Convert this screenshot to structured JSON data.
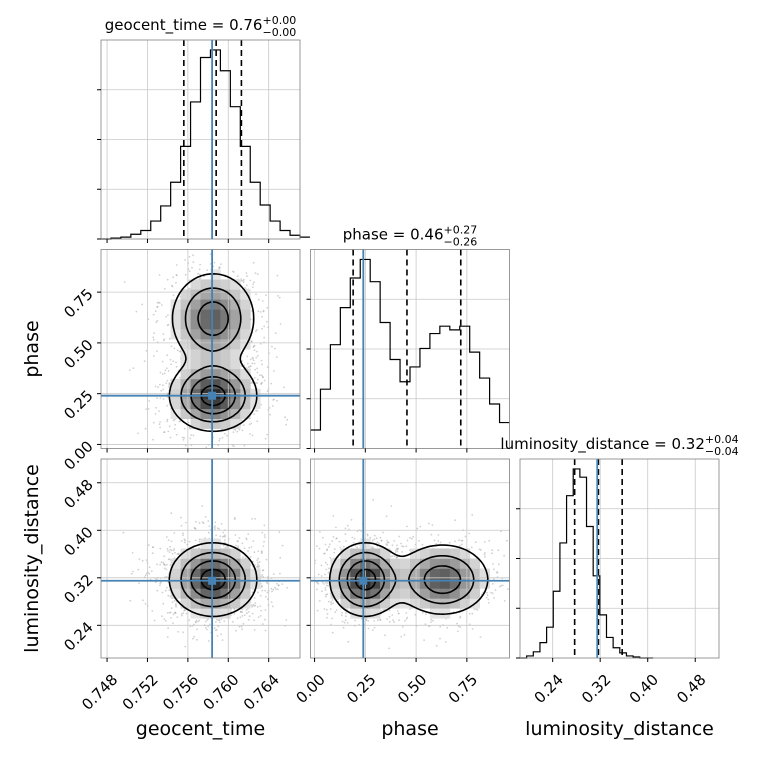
{
  "chart_data": {
    "type": "corner",
    "parameters": [
      {
        "name": "geocent_time",
        "axis_label": "geocent_time",
        "title_value": "0.76",
        "title_plus": "+0.00",
        "title_minus": "−0.00",
        "range": [
          0.7474,
          0.7671
        ],
        "ticks": [
          0.748,
          0.752,
          0.756,
          0.76,
          0.764
        ],
        "tick_labels": [
          "0.748",
          "0.752",
          "0.756",
          "0.760",
          "0.764"
        ],
        "truth": 0.7584,
        "quantiles": [
          0.7556,
          0.7588,
          0.7613
        ],
        "histogram": {
          "edges_start": 0.7474,
          "bin_width": 0.000985,
          "counts": [
            0,
            1,
            2,
            5,
            9,
            19,
            35,
            60,
            98,
            145,
            192,
            200,
            178,
            140,
            98,
            60,
            36,
            19,
            9,
            4,
            2
          ]
        }
      },
      {
        "name": "phase",
        "axis_label": "phase",
        "title_value": "0.46",
        "title_plus": "+0.27",
        "title_minus": "−0.26",
        "range": [
          -0.02,
          0.96
        ],
        "ticks": [
          0.0,
          0.25,
          0.5,
          0.75
        ],
        "tick_labels": [
          "0.00",
          "0.25",
          "0.50",
          "0.75"
        ],
        "truth": 0.24,
        "quantiles": [
          0.19,
          0.455,
          0.72
        ],
        "histogram": {
          "edges_start": -0.02,
          "bin_width": 0.049,
          "counts": [
            5,
            16,
            28,
            38,
            46,
            51,
            45,
            34,
            24,
            18,
            22,
            27,
            31,
            33,
            32,
            33,
            26,
            19,
            12,
            7
          ]
        }
      },
      {
        "name": "luminosity_distance",
        "axis_label": "luminosity_distance",
        "title_value": "0.32",
        "title_plus": "+0.04",
        "title_minus": "−0.04",
        "range": [
          0.185,
          0.52
        ],
        "ticks": [
          0.24,
          0.32,
          0.4,
          0.48
        ],
        "tick_labels": [
          "0.24",
          "0.32",
          "0.40",
          "0.48"
        ],
        "truth": 0.315,
        "quantiles": [
          0.277,
          0.317,
          0.357
        ],
        "histogram": {
          "edges_start": 0.185,
          "bin_width": 0.0112,
          "counts": [
            0,
            2,
            6,
            15,
            30,
            65,
            112,
            158,
            184,
            176,
            128,
            80,
            42,
            20,
            10,
            5,
            2,
            1,
            0,
            0
          ]
        }
      }
    ],
    "pairs": [
      {
        "row": 1,
        "col": 0,
        "blobs": [
          {
            "x": 0.7585,
            "y": 0.24,
            "sx": 0.0021,
            "sy": 0.085,
            "w": 1.0
          },
          {
            "x": 0.7585,
            "y": 0.62,
            "sx": 0.0021,
            "sy": 0.115,
            "w": 0.75
          }
        ]
      },
      {
        "row": 2,
        "col": 0,
        "blobs": [
          {
            "x": 0.7585,
            "y": 0.317,
            "sx": 0.0021,
            "sy": 0.03,
            "w": 1.0
          }
        ]
      },
      {
        "row": 2,
        "col": 1,
        "blobs": [
          {
            "x": 0.25,
            "y": 0.317,
            "sx": 0.085,
            "sy": 0.03,
            "w": 1.0
          },
          {
            "x": 0.63,
            "y": 0.317,
            "sx": 0.115,
            "sy": 0.03,
            "w": 0.78
          }
        ]
      }
    ],
    "truth_color": "#4682b4",
    "hist_color": "#000000",
    "grid": true
  }
}
